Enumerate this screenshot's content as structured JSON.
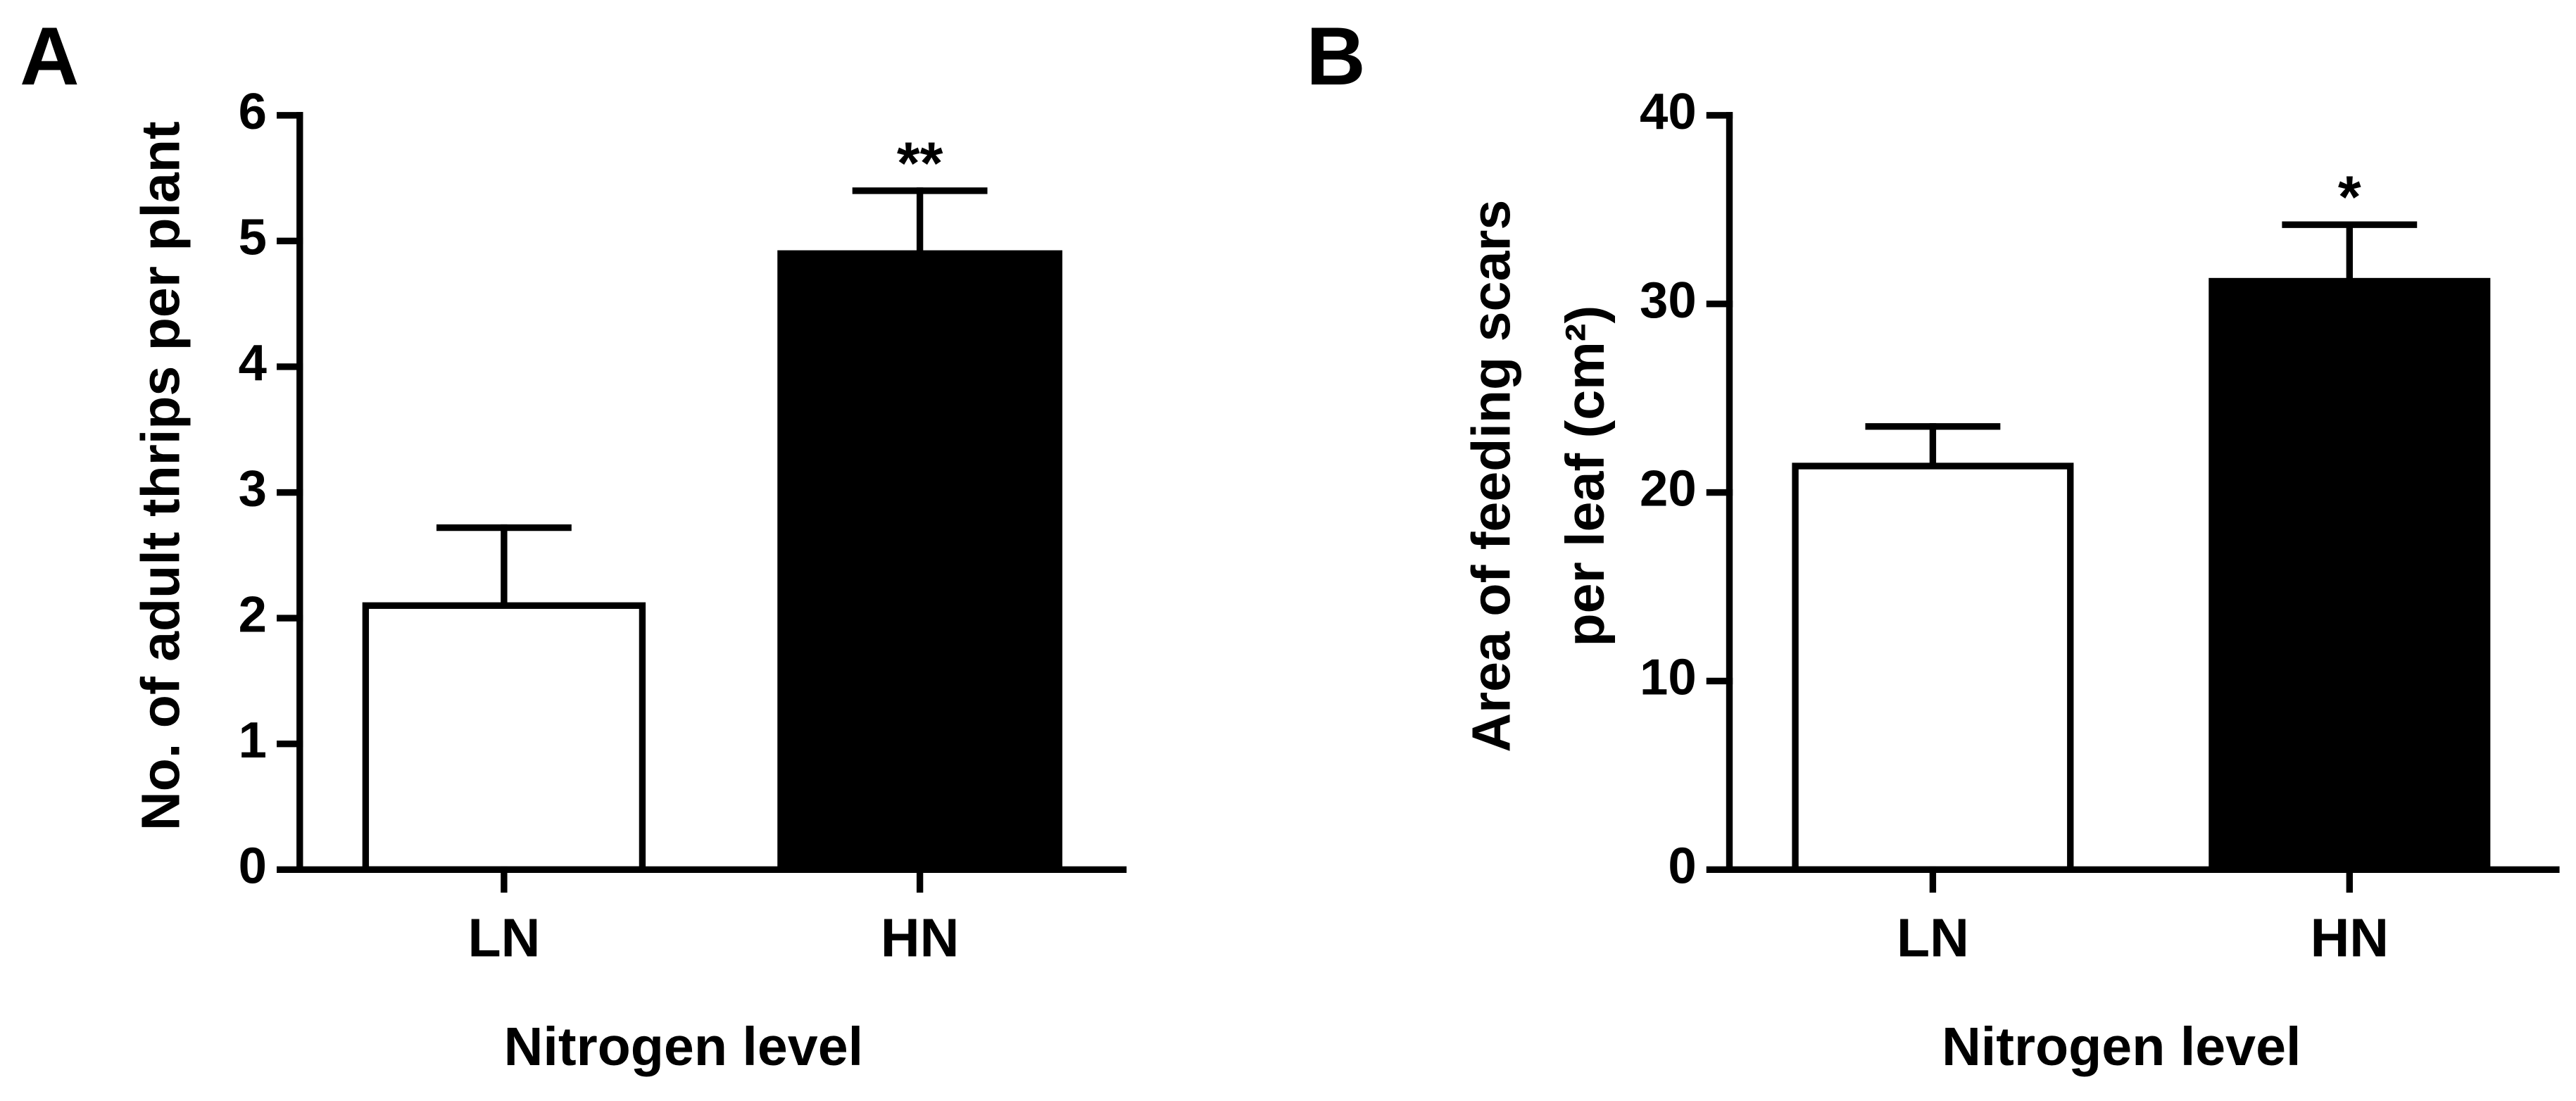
{
  "chart_data": [
    {
      "type": "bar",
      "panel": "A",
      "ylabel": [
        "No. of adult thrips per plant"
      ],
      "xlabel": "Nitrogen level",
      "categories": [
        "LN",
        "HN"
      ],
      "values": [
        2.1,
        4.9
      ],
      "errors": [
        0.62,
        0.5
      ],
      "colors": [
        "#ffffff",
        "#000000"
      ],
      "significance": [
        null,
        "**"
      ],
      "ylim": [
        0,
        6
      ],
      "yticks": [
        0,
        1,
        2,
        3,
        4,
        5,
        6
      ]
    },
    {
      "type": "bar",
      "panel": "B",
      "ylabel": [
        "Area of feeding scars",
        "per  leaf  (cm²)"
      ],
      "xlabel": "Nitrogen level",
      "categories": [
        "LN",
        "HN"
      ],
      "values": [
        21.4,
        31.2
      ],
      "errors": [
        2.1,
        3.0
      ],
      "colors": [
        "#ffffff",
        "#000000"
      ],
      "significance": [
        null,
        "*"
      ],
      "ylim": [
        0,
        40
      ],
      "yticks": [
        0,
        10,
        20,
        30,
        40
      ]
    }
  ]
}
